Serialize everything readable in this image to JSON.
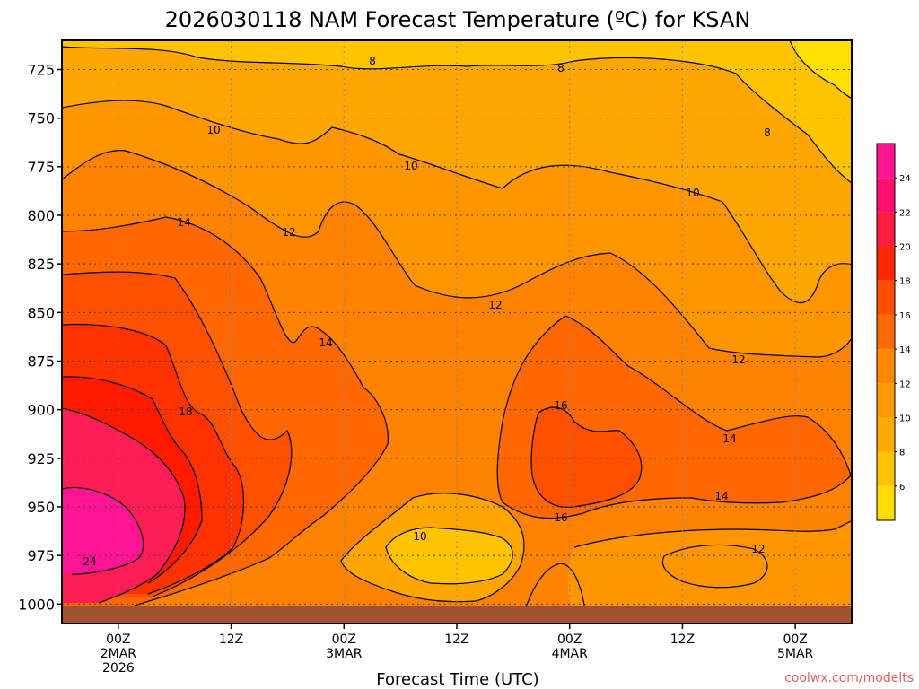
{
  "chart_data": {
    "type": "contour",
    "title": "2026030118 NAM Forecast Temperature (ºC) for KSAN",
    "xlabel": "Forecast Time (UTC)",
    "ylabel": "",
    "y_ticks": [
      "725",
      "750",
      "775",
      "800",
      "825",
      "850",
      "875",
      "900",
      "925",
      "950",
      "975",
      "1000"
    ],
    "y_range": [
      710,
      1010
    ],
    "x_ticks": [
      {
        "lines": [
          "00Z",
          "2MAR",
          "2026"
        ]
      },
      {
        "lines": [
          "12Z"
        ]
      },
      {
        "lines": [
          "00Z",
          "3MAR"
        ]
      },
      {
        "lines": [
          "12Z"
        ]
      },
      {
        "lines": [
          "00Z",
          "4MAR"
        ]
      },
      {
        "lines": [
          "12Z"
        ]
      },
      {
        "lines": [
          "00Z",
          "5MAR"
        ]
      }
    ],
    "x_tick_hours": [
      6,
      18,
      30,
      42,
      54,
      66,
      78
    ],
    "x_range_hours": [
      0,
      84
    ],
    "contour_levels": [
      6,
      8,
      10,
      12,
      14,
      16,
      18,
      20,
      22,
      24
    ],
    "contour_labels": [
      "8",
      "8",
      "8",
      "10",
      "10",
      "10",
      "12",
      "12",
      "12",
      "14",
      "14",
      "14",
      "14",
      "16",
      "16",
      "18",
      "24",
      "12",
      "10"
    ],
    "colorbar": {
      "ticks": [
        "6",
        "8",
        "10",
        "12",
        "14",
        "16",
        "18",
        "20",
        "22",
        "24"
      ],
      "colors": [
        "#ffdd00",
        "#ffc200",
        "#ffaa00",
        "#ff9a00",
        "#ff8800",
        "#ff6a00",
        "#ff4e00",
        "#ff2600",
        "#ff1e40",
        "#ff1070",
        "#ff1493"
      ]
    },
    "credit": "coolwx.com/modelts"
  }
}
